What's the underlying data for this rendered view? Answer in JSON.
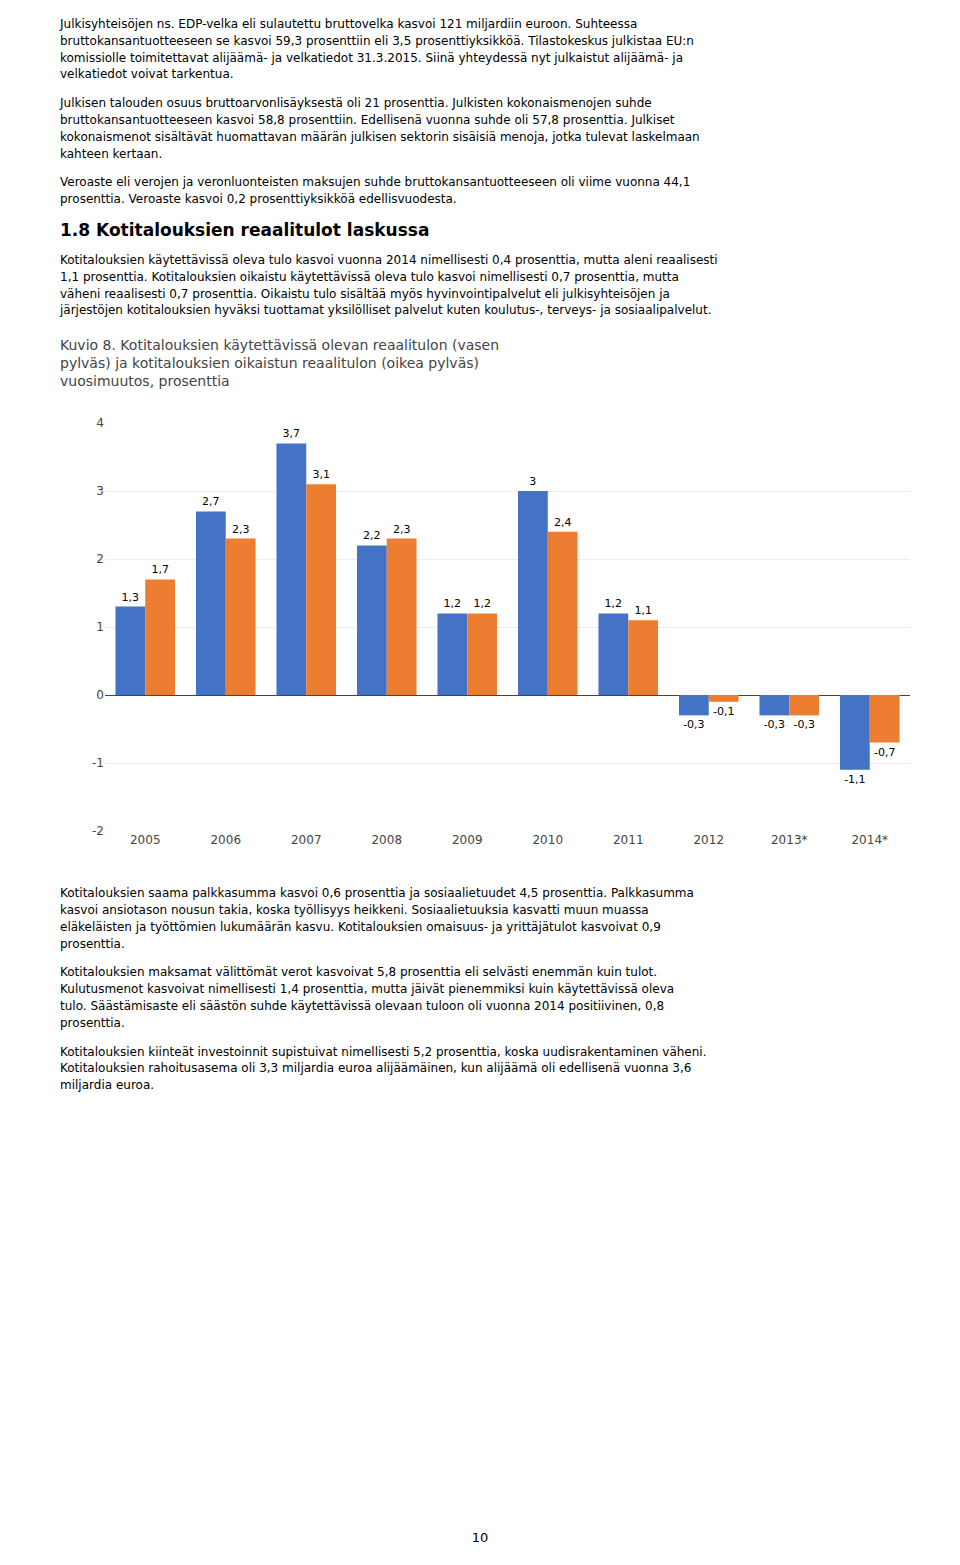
{
  "chart_data": {
    "type": "bar",
    "title": "Kuvio 8. Kotitalouksien käytettävissä olevan reaalitulon (vasen\npylväs) ja kotitalouksien oikaistun reaalitulon (oikea pylväs)\nvuosimuutos, prosenttia",
    "categories": [
      "2005",
      "2006",
      "2007",
      "2008",
      "2009",
      "2010",
      "2011",
      "2012",
      "2013*",
      "2014*"
    ],
    "series": [
      {
        "color": "#4472C4",
        "values": [
          1.3,
          2.7,
          3.7,
          2.2,
          1.2,
          3.0,
          1.2,
          -0.3,
          -0.3,
          -1.1
        ],
        "value_labels": [
          "1,3",
          "2,7",
          "3,7",
          "2,2",
          "1,2",
          "3",
          "1,2",
          "-0,3",
          "-0,3",
          "-1,1"
        ]
      },
      {
        "color": "#ED7D31",
        "values": [
          1.7,
          2.3,
          3.1,
          2.3,
          1.2,
          2.4,
          1.1,
          -0.1,
          -0.3,
          -0.7
        ],
        "value_labels": [
          "1,7",
          "2,3",
          "3,1",
          "2,3",
          "1,2",
          "2,4",
          "1,1",
          "-0,1",
          "-0,3",
          "-0,7"
        ]
      }
    ],
    "ylim": [
      -2,
      4
    ],
    "yticks": [
      -2,
      -1,
      0,
      1,
      2,
      3,
      4
    ],
    "grid": true,
    "data_labels": true
  },
  "text_before_chart": [
    "Julkisyhteisöjen ns. EDP-velka eli sulautettu bruttovelka kasvoi 121 miljardiin euroon. Suhteessa\nbruttokansantuotteeseen se kasvoi 59,3 prosenttiin eli 3,5 prosenttiyksikköä. Tilastokeskus julkistaa EU:n\nkomissiolle toimitettavat alijäämä- ja velkatiedot 31.3.2015. Siinä yhteydessä nyt julkaistut alijäämä- ja\nvelkatiedot voivat tarkentua.",
    "Julkisen talouden osuus bruttoarvonlisäyksestä oli 21 prosenttia. Julkisten kokonaismenojen suhde\nbruttokansantuotteeseen kasvoi 58,8 prosenttiin. Edellisenä vuonna suhde oli 57,8 prosenttia. Julkiset\nkokonaismenot sisältävät huomattavan määrän julkisen sektorin sisäisiä menoja, jotka tulevat laskelmaan\nkahteen kertaan.",
    "Veroaste eli verojen ja veronluonteisten maksujen suhde bruttokansantuotteeseen oli viime vuonna 44,1\nprosenttia. Veroaste kasvoi 0,2 prosenttiyksikköä edellisvuodesta."
  ],
  "section_heading": "1.8 Kotitalouksien reaalitulot laskussa",
  "text_after_heading": [
    "Kotitalouksien käytettävissä oleva tulo kasvoi vuonna 2014 nimellisesti 0,4 prosenttia, mutta aleni reaalisesti\n1,1 prosenttia. Kotitalouksien oikaistu käytettävissä oleva tulo kasvoi nimellisesti 0,7 prosenttia, mutta\nväheni reaalisesti 0,7 prosenttia. Oikaistu tulo sisältää myös hyvinvointipalvelut eli julkisyhteisöjen ja\njärjestöjen kotitalouksien hyväksi tuottamat yksilölliset palvelut kuten koulutus-, terveys- ja sosiaalipalvelut."
  ],
  "text_after_chart": [
    "Kotitalouksien saama palkkasumma kasvoi 0,6 prosenttia ja sosiaalietuudet 4,5 prosenttia. Palkkasumma\nkasvoi ansiotason nousun takia, koska työllisyys heikkeni. Sosiaalietuuksia kasvatti muun muassa\neläkeläisten ja työttömien lukumäärän kasvu. Kotitalouksien omaisuus- ja yrittäjätulot kasvoivat 0,9\nprosenttia.",
    "Kotitalouksien maksamat välittömät verot kasvoivat 5,8 prosenttia eli selvästi enemmän kuin tulot.\nKulutusmenot kasvoivat nimellisesti 1,4 prosenttia, mutta jäivät pienemmiksi kuin käytettävissä oleva\ntulo. Säästämisaste eli säästön suhde käytettävissä olevaan tuloon oli vuonna 2014 positiivinen, 0,8\nprosenttia.",
    "Kotitalouksien kiinteät investoinnit supistuivat nimellisesti 5,2 prosenttia, koska uudisrakentaminen väheni.\nKotitalouksien rahoitusasema oli 3,3 miljardia euroa alijäämäinen, kun alijäämä oli edellisenä vuonna 3,6\nmiljardia euroa."
  ],
  "page_number": "10"
}
